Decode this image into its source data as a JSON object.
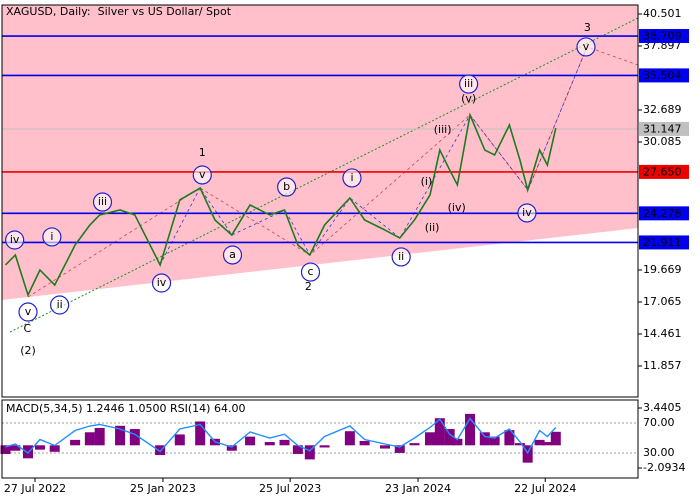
{
  "chart_data": [
    {
      "type": "line",
      "title": "XAGUSD, Daily:  Silver vs US Dollar/ Spot",
      "x": [
        "2022-06-15",
        "2022-06-29",
        "2022-07-17",
        "2022-08-03",
        "2022-08-24",
        "2022-09-22",
        "2022-10-13",
        "2022-10-27",
        "2022-11-25",
        "2022-12-16",
        "2023-01-21",
        "2023-02-18",
        "2023-03-19",
        "2023-04-09",
        "2023-05-03",
        "2023-05-29",
        "2023-06-26",
        "2023-07-17",
        "2023-08-05",
        "2023-08-22",
        "2023-09-12",
        "2023-10-18",
        "2023-11-08",
        "2023-12-07",
        "2023-12-28",
        "2024-01-18",
        "2024-02-09",
        "2024-02-23",
        "2024-03-08",
        "2024-03-19",
        "2024-04-06",
        "2024-04-27",
        "2024-05-11",
        "2024-06-01",
        "2024-06-16",
        "2024-06-27",
        "2024-07-14",
        "2024-07-25",
        "2024-08-06"
      ],
      "series": [
        {
          "color": "#1f7a1f",
          "values": [
            20.08,
            20.89,
            17.64,
            19.67,
            18.45,
            21.7,
            23.33,
            24.15,
            24.55,
            24.15,
            20.08,
            25.37,
            26.34,
            23.74,
            22.52,
            24.96,
            24.15,
            24.55,
            21.7,
            20.89,
            23.33,
            25.53,
            23.74,
            22.92,
            22.27,
            23.74,
            25.77,
            29.43,
            27.81,
            26.59,
            32.28,
            29.43,
            29.03,
            31.47,
            28.62,
            26.18,
            29.43,
            28.21,
            31.22
          ]
        }
      ],
      "xlim": [
        "2022-06-10",
        "2024-12-01"
      ],
      "xticks": [
        {
          "value": "2022-07-27",
          "label": "27 Jul 2022"
        },
        {
          "value": "2023-01-25",
          "label": "25 Jan 2023"
        },
        {
          "value": "2023-07-25",
          "label": "25 Jul 2023"
        },
        {
          "value": "2024-01-23",
          "label": "23 Jan 2024"
        },
        {
          "value": "2024-07-22",
          "label": "22 Jul 2024"
        }
      ],
      "ylim": [
        9.334,
        41.233
      ],
      "yticks": [
        40.501,
        37.897,
        32.689,
        30.085,
        19.669,
        17.065,
        14.461,
        11.857
      ],
      "grid": false,
      "levels": [
        {
          "value": 38.709,
          "color": "#0000ee"
        },
        {
          "value": 35.504,
          "color": "#0000ee"
        },
        {
          "value": 31.147,
          "color": "#c0c0c0"
        },
        {
          "value": {
            "value": 27.65,
            "label": "27.650"
          },
          "color": "#ee0000"
        },
        {
          "value": 24.278,
          "color": "#0000ee"
        },
        {
          "value": 21.911,
          "color": "#0000ee"
        }
      ],
      "annotations": [
        {
          "text": "(2)",
          "x": "2022-07-17",
          "y": 13.08,
          "color": "#228b22",
          "circled": false
        },
        {
          "text": "C",
          "x": "2022-07-16",
          "y": 14.87,
          "color": "#a0522d",
          "circled": false
        },
        {
          "text": "v",
          "x": "2022-07-17",
          "y": 16.25,
          "color": "#2222cc",
          "circled": true
        },
        {
          "text": "iv",
          "x": "2022-06-28",
          "y": 22.11,
          "color": "#2222cc",
          "circled": true
        },
        {
          "text": "i",
          "x": "2022-08-20",
          "y": 22.36,
          "color": "#2222cc",
          "circled": true
        },
        {
          "text": "ii",
          "x": "2022-08-31",
          "y": 16.82,
          "color": "#2222cc",
          "circled": true
        },
        {
          "text": "iii",
          "x": "2022-10-31",
          "y": 25.2,
          "color": "#2222cc",
          "circled": true
        },
        {
          "text": "iv",
          "x": "2023-01-23",
          "y": 18.61,
          "color": "#2222cc",
          "circled": true
        },
        {
          "text": "v",
          "x": "2023-03-22",
          "y": 27.4,
          "color": "#2222cc",
          "circled": true
        },
        {
          "text": "1",
          "x": "2023-03-22",
          "y": 29.19,
          "color": "#a0522d",
          "circled": false
        },
        {
          "text": "a",
          "x": "2023-05-04",
          "y": 20.89,
          "color": "#2222cc",
          "circled": true
        },
        {
          "text": "b",
          "x": "2023-07-20",
          "y": 26.42,
          "color": "#2222cc",
          "circled": true
        },
        {
          "text": "c",
          "x": "2023-08-23",
          "y": 19.5,
          "color": "#2222cc",
          "circled": true
        },
        {
          "text": "2",
          "x": "2023-08-20",
          "y": 18.29,
          "color": "#a0522d",
          "circled": false
        },
        {
          "text": "i",
          "x": "2023-10-21",
          "y": 27.16,
          "color": "#2222cc",
          "circled": true
        },
        {
          "text": "ii",
          "x": "2023-12-30",
          "y": 20.73,
          "color": "#2222cc",
          "circled": true
        },
        {
          "text": "(i)",
          "x": "2024-02-04",
          "y": 26.83,
          "color": "#cc2222",
          "circled": false
        },
        {
          "text": "(ii)",
          "x": "2024-02-12",
          "y": 23.09,
          "color": "#cc2222",
          "circled": false
        },
        {
          "text": "(iii)",
          "x": "2024-02-27",
          "y": 31.06,
          "color": "#cc2222",
          "circled": false
        },
        {
          "text": "(iv)",
          "x": "2024-03-18",
          "y": 24.72,
          "color": "#cc2222",
          "circled": false
        },
        {
          "text": "(v)",
          "x": "2024-04-04",
          "y": 33.58,
          "color": "#cc2222",
          "circled": false
        },
        {
          "text": "iii",
          "x": "2024-04-04",
          "y": 34.8,
          "color": "#2222cc",
          "circled": true
        },
        {
          "text": "iv",
          "x": "2024-06-26",
          "y": 24.31,
          "color": "#2222cc",
          "circled": true
        },
        {
          "text": "v",
          "x": "2024-09-18",
          "y": 37.82,
          "color": "#2222cc",
          "circled": true
        },
        {
          "text": "3",
          "x": "2024-09-20",
          "y": 39.36,
          "color": "#a0522d",
          "circled": false
        }
      ]
    },
    {
      "type": "bar",
      "title": "MACD(5,34,5) 1.2446 1.0500 RSI(14) 64.00",
      "x": [
        "2022-06-15",
        "2022-06-29",
        "2022-07-17",
        "2022-08-03",
        "2022-08-24",
        "2022-09-22",
        "2022-10-13",
        "2022-10-27",
        "2022-11-25",
        "2022-12-16",
        "2023-01-21",
        "2023-02-18",
        "2023-03-19",
        "2023-04-09",
        "2023-05-03",
        "2023-05-29",
        "2023-06-26",
        "2023-07-17",
        "2023-08-05",
        "2023-08-22",
        "2023-09-12",
        "2023-10-18",
        "2023-11-08",
        "2023-12-07",
        "2023-12-28",
        "2024-01-18",
        "2024-02-09",
        "2024-02-23",
        "2024-03-08",
        "2024-03-19",
        "2024-04-06",
        "2024-04-27",
        "2024-05-11",
        "2024-06-01",
        "2024-06-16",
        "2024-06-27",
        "2024-07-14",
        "2024-07-25",
        "2024-08-06"
      ],
      "series": [
        {
          "color": "#800080",
          "values": [
            -0.8,
            -0.5,
            -1.2,
            -0.4,
            -0.6,
            0.5,
            1.2,
            1.6,
            1.8,
            1.5,
            -0.9,
            1.0,
            2.2,
            0.6,
            -0.5,
            0.8,
            0.3,
            0.5,
            -0.8,
            -1.3,
            -0.2,
            1.3,
            0.4,
            -0.3,
            -0.7,
            0.2,
            1.2,
            2.5,
            1.5,
            0.6,
            2.9,
            1.2,
            0.8,
            1.4,
            0.2,
            -1.6,
            0.5,
            0.3,
            1.2446
          ]
        },
        {
          "color": "#1e90ff",
          "axis": "y2",
          "values": [
            38,
            42,
            30,
            48,
            40,
            60,
            66,
            68,
            62,
            55,
            32,
            62,
            68,
            45,
            38,
            58,
            50,
            55,
            40,
            33,
            52,
            66,
            48,
            42,
            38,
            50,
            64,
            75,
            55,
            48,
            76,
            52,
            50,
            62,
            45,
            30,
            60,
            52,
            64
          ]
        }
      ],
      "xlim": [
        "2022-06-10",
        "2024-12-01"
      ],
      "ylim": [
        -3.016,
        4.178
      ],
      "yticks": [
        3.4405,
        -2.0934
      ],
      "y2lim": [
        -3.33,
        100.67
      ],
      "y2ticks": [
        {
          "value": 70,
          "label": "70.00"
        },
        {
          "value": 30,
          "label": "30.00"
        }
      ]
    }
  ]
}
